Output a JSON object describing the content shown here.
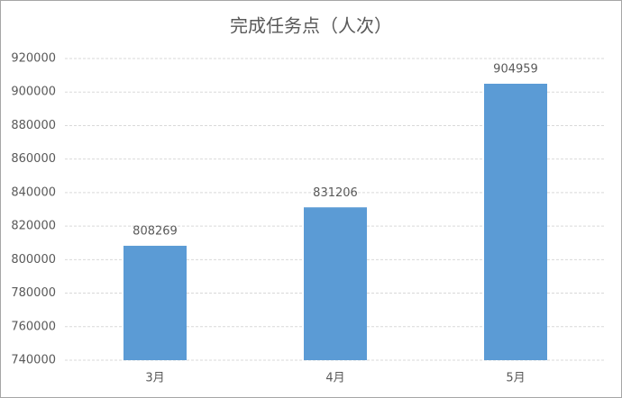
{
  "chart_data": {
    "type": "bar",
    "title": "完成任务点（人次）",
    "categories": [
      "3月",
      "4月",
      "5月"
    ],
    "values": [
      808269,
      831206,
      904959
    ],
    "color": "#5b9bd5",
    "ylim": [
      740000,
      920000
    ],
    "yticks": [
      740000,
      760000,
      780000,
      800000,
      820000,
      840000,
      860000,
      880000,
      900000,
      920000
    ],
    "grid": true
  }
}
